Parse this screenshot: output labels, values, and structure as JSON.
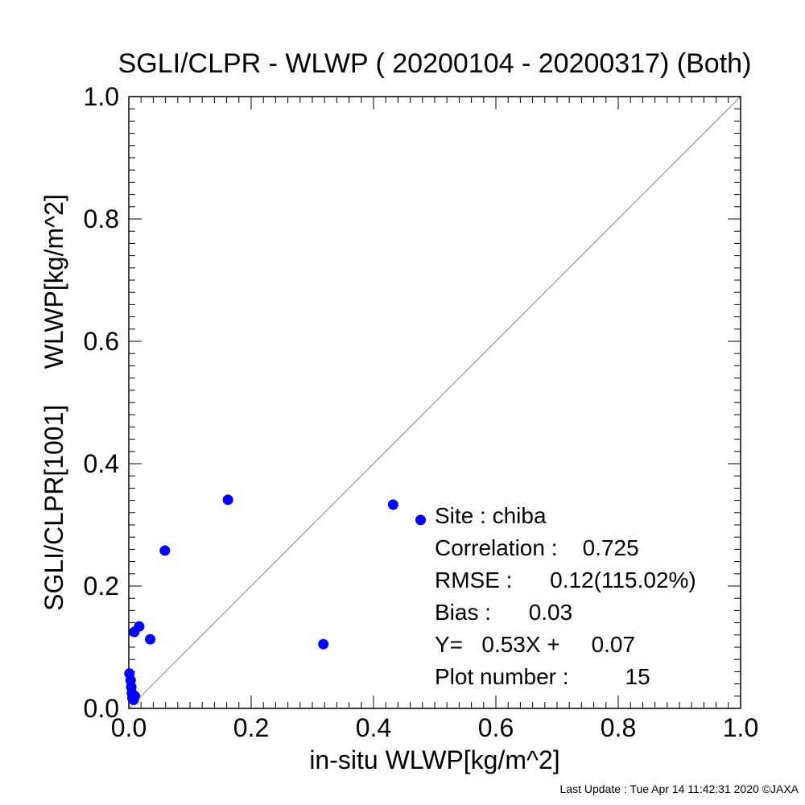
{
  "chart_data": {
    "type": "scatter",
    "title": "SGLI/CLPR - WLWP ( 20200104 - 20200317) (Both)",
    "xlabel": "in-situ WLWP[kg/m^2]",
    "ylabel": "SGLI/CLPR[1001]     WLWP[kg/m^2]",
    "xlim": [
      0.0,
      1.0
    ],
    "ylim": [
      0.0,
      1.0
    ],
    "xticks": [
      "0.0",
      "0.2",
      "0.4",
      "0.6",
      "0.8",
      "1.0"
    ],
    "yticks": [
      "0.0",
      "0.2",
      "0.4",
      "0.6",
      "0.8",
      "1.0"
    ],
    "reference_line": "y = x",
    "grid": false,
    "marker_color": "#0000ff",
    "points": [
      {
        "x": 0.001,
        "y": 0.057
      },
      {
        "x": 0.003,
        "y": 0.046
      },
      {
        "x": 0.004,
        "y": 0.035
      },
      {
        "x": 0.005,
        "y": 0.025
      },
      {
        "x": 0.006,
        "y": 0.017
      },
      {
        "x": 0.008,
        "y": 0.014
      },
      {
        "x": 0.01,
        "y": 0.02
      },
      {
        "x": 0.009,
        "y": 0.125
      },
      {
        "x": 0.017,
        "y": 0.134
      },
      {
        "x": 0.035,
        "y": 0.113
      },
      {
        "x": 0.059,
        "y": 0.258
      },
      {
        "x": 0.162,
        "y": 0.341
      },
      {
        "x": 0.318,
        "y": 0.105
      },
      {
        "x": 0.432,
        "y": 0.333
      },
      {
        "x": 0.477,
        "y": 0.308
      }
    ],
    "stats": [
      "Site : chiba",
      "Correlation :    0.725",
      "RMSE :      0.12(115.02%)",
      "Bias :      0.03",
      "Y=   0.53X +     0.07",
      "Plot number :         15"
    ]
  },
  "footer": "Last Update : Tue Apr 14 11:42:31 2020  ©JAXA"
}
